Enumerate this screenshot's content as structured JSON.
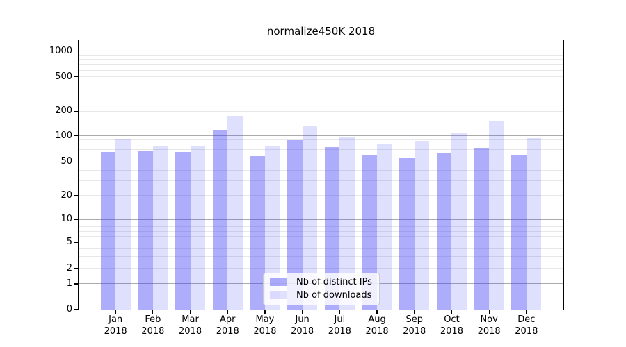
{
  "chart_data": {
    "type": "bar",
    "title": "normalize450K 2018",
    "categories": [
      "Jan",
      "Feb",
      "Mar",
      "Apr",
      "May",
      "Jun",
      "Jul",
      "Aug",
      "Sep",
      "Oct",
      "Nov",
      "Dec"
    ],
    "category_year": "2018",
    "series": [
      {
        "name": "Nb of distinct IPs",
        "color": "rgba(59,59,246,0.42)",
        "values": [
          65,
          67,
          65,
          119,
          58,
          90,
          74,
          60,
          56,
          63,
          73,
          59
        ]
      },
      {
        "name": "Nb of downloads",
        "color": "rgba(59,59,246,0.16)",
        "values": [
          92,
          77,
          77,
          176,
          77,
          131,
          96,
          82,
          87,
          107,
          154,
          94
        ]
      }
    ],
    "yscale": "symlog",
    "yticks": [
      0,
      1,
      2,
      5,
      10,
      20,
      50,
      100,
      200,
      500,
      1000
    ],
    "ylim": [
      0,
      1350
    ],
    "grid": true,
    "legend_position": "lower center",
    "colors": {
      "background": "#ffffff",
      "grid_major": "#ababab",
      "grid_minor": "#e7e7e7",
      "axis": "#000000",
      "legend_border": "#cccccc"
    }
  }
}
